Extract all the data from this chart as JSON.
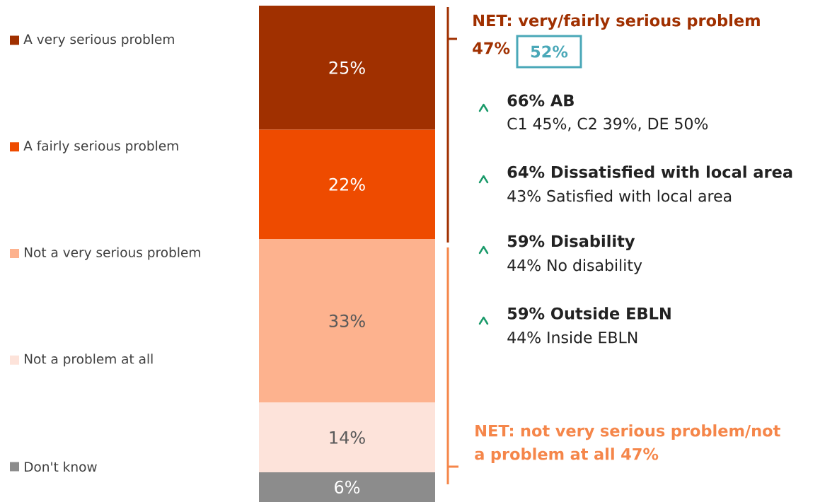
{
  "chart_data": {
    "type": "bar",
    "stacked": true,
    "legend": "left",
    "categories": [
      null
    ],
    "series": [
      {
        "name": "Don't know",
        "color": "#8c8c8c",
        "values": [
          6
        ],
        "value_labels": [
          "6%"
        ]
      },
      {
        "name": "Not a problem at all",
        "color": "#fde3da",
        "values": [
          14
        ],
        "value_labels": [
          "14%"
        ]
      },
      {
        "name": "Not a very serious problem",
        "color": "#fdb28e",
        "values": [
          33
        ],
        "value_labels": [
          "33%"
        ]
      },
      {
        "name": "A fairly serious problem",
        "color": "#ee4b00",
        "values": [
          22
        ],
        "value_labels": [
          "22%"
        ]
      },
      {
        "name": "A very serious problem",
        "color": "#a03000",
        "values": [
          25
        ],
        "value_labels": [
          "25%"
        ]
      }
    ],
    "annotations": [
      "NET: very/fairly serious problem",
      "47%",
      "52%",
      "66% AB",
      "C1 45%, C2 39%, DE 50%",
      "64% Dissatisfied with local area",
      "43% Satisfied with local area",
      "59% Disability",
      "44% No disability",
      "59% Outside EBLN",
      "44% Inside EBLN",
      "NET: not very serious problem/not a problem at all 47%"
    ]
  }
}
